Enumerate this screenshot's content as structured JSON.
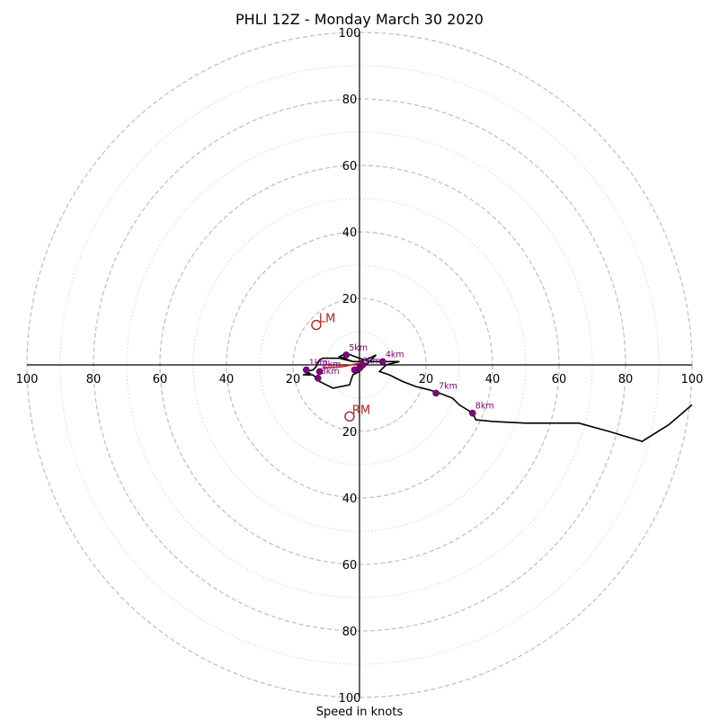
{
  "chart_data": {
    "type": "hodograph",
    "title": "PHLI 12Z - Monday March 30 2020",
    "xlabel": "Speed in knots",
    "rmax": 100,
    "rings_major": [
      20,
      40,
      60,
      80,
      100
    ],
    "rings_minor": [
      10,
      30,
      50,
      70,
      90
    ],
    "tick_values": [
      20,
      40,
      60,
      80,
      100
    ],
    "ticks": {
      "left": [
        "100",
        "80",
        "60",
        "40",
        "20"
      ],
      "right": [
        "20",
        "40",
        "60",
        "80",
        "100"
      ],
      "top": [
        "100",
        "80",
        "60",
        "40",
        "20"
      ],
      "bottom": [
        "20",
        "40",
        "60",
        "80",
        "100"
      ]
    },
    "colors": {
      "hodograph": "#000000",
      "km_marker": "#800080",
      "mean_wind": "#e41a1c",
      "storm_motion": "#b22222",
      "grid": "#bdbdbd"
    },
    "hodograph_uv": [
      [
        -2,
        1
      ],
      [
        -6,
        2
      ],
      [
        -11,
        2
      ],
      [
        -12,
        1.5
      ],
      [
        -13,
        -0.5
      ],
      [
        -14,
        -1.5
      ],
      [
        -16,
        -2
      ],
      [
        -15,
        -2.5
      ],
      [
        -17,
        -3
      ],
      [
        -14,
        -3
      ],
      [
        -13,
        -4
      ],
      [
        -12,
        -5
      ],
      [
        -10,
        -6
      ],
      [
        -8,
        -7
      ],
      [
        -3,
        -6
      ],
      [
        -2,
        -3
      ],
      [
        0,
        -2
      ],
      [
        3,
        1
      ],
      [
        5,
        3
      ],
      [
        3,
        2
      ],
      [
        0,
        1
      ],
      [
        -2,
        1
      ],
      [
        -6,
        2.5
      ],
      [
        -4,
        3.5
      ],
      [
        0,
        2
      ],
      [
        3,
        1
      ],
      [
        5,
        1
      ],
      [
        8,
        1
      ],
      [
        12,
        1
      ],
      [
        8,
        0
      ],
      [
        6,
        -2
      ],
      [
        9,
        -3
      ],
      [
        13,
        -5
      ],
      [
        17,
        -6.5
      ],
      [
        21,
        -7.5
      ],
      [
        24,
        -8.5
      ],
      [
        28,
        -10
      ],
      [
        30,
        -12
      ],
      [
        34,
        -14.5
      ],
      [
        35,
        -16.5
      ],
      [
        40,
        -17
      ],
      [
        50,
        -17.5
      ],
      [
        58,
        -17.5
      ],
      [
        66,
        -17.5
      ],
      [
        75,
        -20
      ],
      [
        85,
        -23
      ],
      [
        93,
        -18
      ],
      [
        100,
        -12
      ]
    ],
    "km_markers": [
      {
        "label": "1km",
        "u": -16,
        "v": -1.5
      },
      {
        "label": "2km",
        "u": -12,
        "v": -2
      },
      {
        "label": "3km",
        "u": -12.5,
        "v": -4
      },
      {
        "label": "5km",
        "u": -4,
        "v": 3
      },
      {
        "label": "4km",
        "u": 7,
        "v": 1
      },
      {
        "label": "6km",
        "u": 0,
        "v": -1
      },
      {
        "label": "7km",
        "u": 23,
        "v": -8.5
      },
      {
        "label": "8km",
        "u": 34,
        "v": -14.5
      },
      {
        "label": "",
        "u": -1.5,
        "v": -1.5
      },
      {
        "label": "",
        "u": 1,
        "v": 0
      }
    ],
    "mean_wind_uv": [
      [
        -11,
        -1
      ],
      [
        -5,
        -0.5
      ],
      [
        0,
        0.5
      ],
      [
        1,
        -0.5
      ]
    ],
    "storm_motions": [
      {
        "label": "LM",
        "u": -13,
        "v": 12
      },
      {
        "label": "RM",
        "u": -3,
        "v": -15.5
      }
    ]
  }
}
